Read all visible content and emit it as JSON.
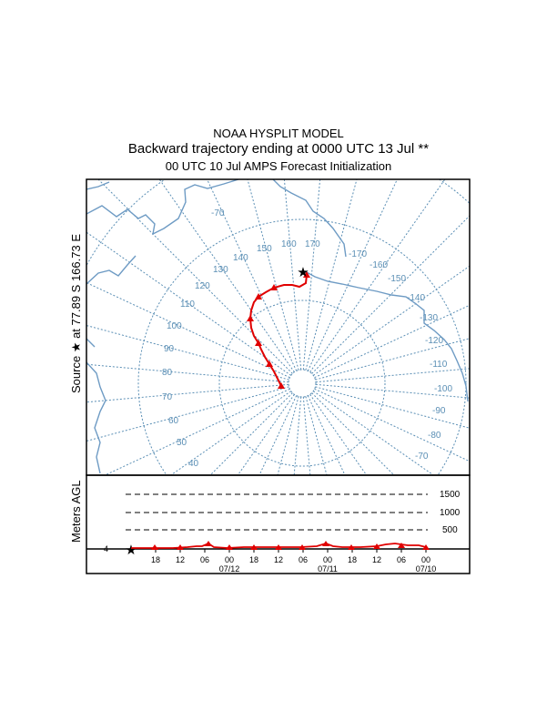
{
  "title": {
    "line1": "NOAA HYSPLIT MODEL",
    "line2": "Backward trajectory ending at 0000 UTC 13 Jul **",
    "line3": "00 UTC 10 Jul    AMPS  Forecast Initialization"
  },
  "map": {
    "source_label": "Source ★ at   77.89 S  166.73 E",
    "longitude_labels": [
      "-70",
      "170",
      "-170",
      "-160",
      "-150",
      "-140",
      "-130",
      "-120",
      "-110",
      "-100",
      "-90",
      "-80",
      "-70",
      "160",
      "150",
      "140",
      "130",
      "120",
      "110",
      "100",
      "90",
      "80",
      "70",
      "60",
      "50",
      "40"
    ],
    "colors": {
      "coast": "#6e9bc4",
      "grid": "#5b8fb5",
      "trajectory": "#e00000"
    }
  },
  "vertical": {
    "ylabel": "Meters AGL",
    "levels": [
      "1500",
      "1000",
      "500"
    ],
    "time_ticks": [
      "18",
      "12",
      "06",
      "00",
      "18",
      "12",
      "06",
      "00",
      "18",
      "12",
      "06",
      "00"
    ],
    "date_labels": [
      "07/12",
      "07/11",
      "07/10"
    ],
    "level_marker": "4"
  }
}
